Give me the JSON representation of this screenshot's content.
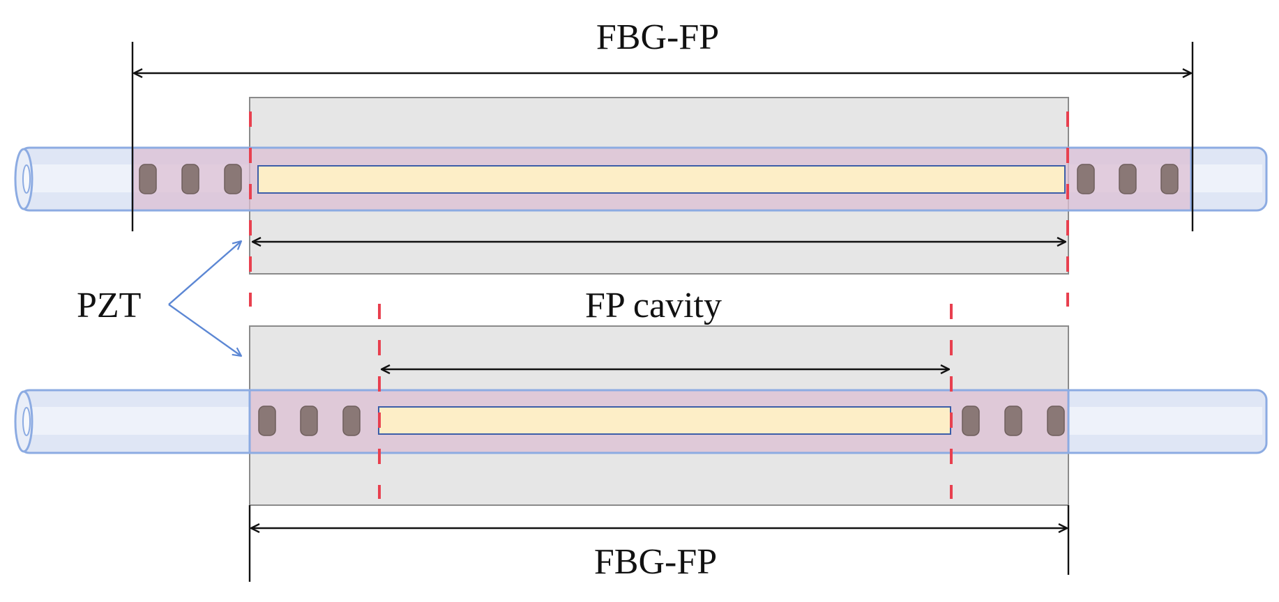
{
  "labels": {
    "top_dimension": "FBG-FP",
    "pzt": "PZT",
    "cavity": "FP cavity",
    "bottom_dimension": "FBG-FP"
  },
  "colors": {
    "fiber_fill": "#dfe6f5",
    "fiber_stroke": "#8cabe2",
    "pzt_fill": "#e6e6e6",
    "pzt_stroke": "#8a8a8a",
    "sensor_band": "#dcbfd3",
    "cavity_fill": "#fdeec7",
    "cavity_stroke": "#3b5da8",
    "grating_mark": "#8a7876",
    "marker_dash": "#e8404f",
    "pointer_arrow": "#5c87d4",
    "dimension_line": "#111111"
  }
}
